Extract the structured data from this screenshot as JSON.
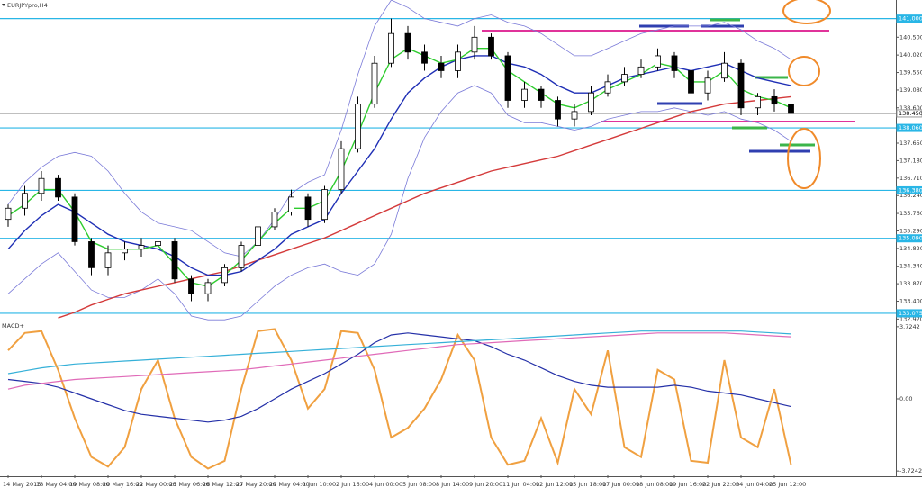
{
  "chart_data": {
    "type": "candlestick",
    "title": "EURJPYpro,H4",
    "categories": [
      "14 May 2015",
      null,
      "18 May 04:00",
      null,
      "19 May 08:00",
      null,
      "20 May 16:00",
      null,
      "22 May 00:00",
      null,
      "25 May 06:00",
      null,
      "26 May 12:00",
      null,
      "27 May 20:00",
      null,
      "29 May 04:00",
      null,
      "1 Jun 10:00",
      null,
      "2 Jun 16:00",
      null,
      "4 Jun 00:00",
      null,
      "5 Jun 08:00",
      null,
      "8 Jun 14:00",
      null,
      "9 Jun 20:00",
      null,
      "11 Jun 04:00",
      null,
      "12 Jun 12:00",
      null,
      "15 Jun 18:00",
      null,
      "17 Jun 00:00",
      null,
      "18 Jun 08:00",
      null,
      "19 Jun 16:00",
      null,
      "22 Jun 22:00",
      null,
      "24 Jun 04:00",
      null,
      "25 Jun 12:00",
      null
    ],
    "open": [
      135.6,
      135.9,
      136.3,
      136.7,
      136.2,
      135.0,
      134.3,
      134.7,
      134.8,
      134.9,
      135.0,
      134.0,
      133.6,
      133.9,
      134.3,
      134.9,
      135.4,
      135.8,
      136.2,
      135.6,
      136.4,
      137.5,
      138.7,
      139.8,
      140.6,
      140.1,
      139.8,
      139.6,
      140.1,
      140.5,
      140.0,
      138.8,
      139.1,
      138.8,
      138.3,
      138.5,
      139.0,
      139.3,
      139.5,
      139.7,
      140.0,
      139.6,
      139.0,
      139.4,
      139.8,
      138.6,
      138.9,
      138.7
    ],
    "high": [
      136.0,
      136.5,
      136.9,
      136.8,
      136.3,
      135.1,
      134.9,
      135.0,
      135.1,
      135.2,
      135.1,
      134.1,
      134.0,
      134.4,
      135.0,
      135.5,
      135.9,
      136.4,
      136.3,
      136.5,
      137.7,
      138.9,
      140.0,
      141.0,
      140.8,
      140.3,
      140.0,
      140.3,
      140.8,
      140.6,
      140.1,
      139.3,
      139.2,
      138.9,
      138.7,
      139.2,
      139.5,
      139.7,
      139.9,
      140.2,
      140.1,
      139.7,
      139.6,
      140.1,
      139.9,
      139.0,
      139.1,
      138.8
    ],
    "low": [
      135.4,
      135.7,
      136.1,
      136.1,
      134.9,
      134.1,
      134.1,
      134.5,
      134.6,
      134.7,
      133.9,
      133.4,
      133.4,
      133.8,
      134.2,
      134.8,
      135.3,
      135.7,
      135.4,
      135.5,
      136.3,
      137.4,
      138.6,
      139.7,
      139.9,
      139.6,
      139.4,
      139.4,
      139.9,
      139.9,
      138.6,
      138.6,
      138.6,
      138.1,
      138.1,
      138.4,
      138.9,
      139.2,
      139.4,
      139.6,
      139.4,
      138.8,
      138.8,
      139.3,
      138.4,
      138.4,
      138.5,
      138.3
    ],
    "close": [
      135.9,
      136.3,
      136.7,
      136.2,
      135.0,
      134.3,
      134.7,
      134.8,
      134.9,
      135.0,
      134.0,
      133.6,
      133.9,
      134.3,
      134.9,
      135.4,
      135.8,
      136.2,
      135.6,
      136.4,
      137.5,
      138.7,
      139.8,
      140.6,
      140.1,
      139.8,
      139.6,
      140.1,
      140.5,
      140.0,
      138.8,
      139.1,
      138.8,
      138.3,
      138.5,
      139.0,
      139.3,
      139.5,
      139.7,
      140.0,
      139.6,
      139.0,
      139.4,
      139.8,
      138.6,
      138.9,
      138.7,
      138.45
    ],
    "up_color": "#ffffff",
    "down_color": "#000000",
    "series": [
      {
        "color": "#d43a3a",
        "values": [
          null,
          null,
          null,
          132.95,
          133.1,
          133.3,
          133.45,
          133.6,
          133.7,
          133.8,
          133.9,
          134.0,
          134.1,
          134.2,
          134.35,
          134.5,
          134.65,
          134.8,
          134.95,
          135.1,
          135.3,
          135.5,
          135.7,
          135.9,
          136.1,
          136.3,
          136.45,
          136.6,
          136.75,
          136.9,
          137.0,
          137.1,
          137.2,
          137.3,
          137.45,
          137.6,
          137.75,
          137.9,
          138.05,
          138.2,
          138.35,
          138.5,
          138.6,
          138.7,
          138.75,
          138.8,
          138.85,
          138.9
        ]
      },
      {
        "color": "#1f2fb5",
        "values": [
          134.8,
          135.3,
          135.7,
          136.0,
          135.8,
          135.5,
          135.2,
          135.0,
          134.9,
          134.8,
          134.6,
          134.3,
          134.1,
          134.1,
          134.2,
          134.5,
          134.8,
          135.2,
          135.4,
          135.6,
          136.3,
          136.9,
          137.5,
          138.3,
          139.0,
          139.4,
          139.7,
          139.9,
          140.0,
          140.0,
          139.8,
          139.7,
          139.5,
          139.2,
          139.0,
          139.0,
          139.2,
          139.4,
          139.5,
          139.6,
          139.7,
          139.6,
          139.7,
          139.8,
          139.6,
          139.4,
          139.3,
          139.2
        ]
      },
      {
        "color": "#2ecc2e",
        "values": [
          135.7,
          136.0,
          136.4,
          136.4,
          135.8,
          135.0,
          134.8,
          134.8,
          134.8,
          134.9,
          134.4,
          133.9,
          133.8,
          134.1,
          134.5,
          135.0,
          135.5,
          135.9,
          135.9,
          136.1,
          136.9,
          137.9,
          139.0,
          139.9,
          140.2,
          140.0,
          139.8,
          139.9,
          140.2,
          140.2,
          139.6,
          139.3,
          139.0,
          138.7,
          138.6,
          138.8,
          139.1,
          139.3,
          139.5,
          139.8,
          139.7,
          139.3,
          139.3,
          139.6,
          139.1,
          138.9,
          138.8,
          138.6
        ]
      },
      {
        "color": "#7a7ad8",
        "values": [
          136.0,
          136.6,
          137.0,
          137.3,
          137.4,
          137.3,
          136.9,
          136.3,
          135.8,
          135.5,
          135.4,
          135.3,
          135.0,
          134.7,
          134.6,
          135.0,
          135.6,
          136.3,
          136.6,
          136.8,
          138.0,
          139.5,
          140.8,
          141.5,
          141.3,
          141.0,
          140.9,
          140.8,
          141.0,
          141.1,
          140.9,
          140.8,
          140.6,
          140.3,
          140.0,
          140.0,
          140.2,
          140.4,
          140.6,
          140.7,
          140.8,
          140.8,
          140.8,
          140.9,
          140.7,
          140.4,
          140.2,
          139.9
        ]
      },
      {
        "color": "#7a7ad8",
        "values": [
          133.6,
          134.0,
          134.4,
          134.7,
          134.2,
          133.7,
          133.5,
          133.5,
          133.7,
          134.0,
          133.6,
          133.0,
          132.9,
          132.9,
          133.0,
          133.4,
          133.8,
          134.1,
          134.3,
          134.4,
          134.2,
          134.1,
          134.4,
          135.2,
          136.7,
          137.8,
          138.5,
          139.0,
          139.2,
          139.0,
          138.4,
          138.2,
          138.2,
          138.1,
          138.0,
          138.1,
          138.3,
          138.4,
          138.5,
          138.5,
          138.6,
          138.5,
          138.4,
          138.5,
          138.3,
          138.2,
          138.0,
          137.7
        ]
      }
    ],
    "ylim": [
      132.88,
      141.5
    ],
    "yticks": [
      {
        "value": 132.92,
        "label": "132.920"
      },
      {
        "value": 133.4,
        "label": "133.400"
      },
      {
        "value": 133.87,
        "label": "133.870"
      },
      {
        "value": 134.34,
        "label": "134.340"
      },
      {
        "value": 134.82,
        "label": "134.820"
      },
      {
        "value": 135.29,
        "label": "135.290"
      },
      {
        "value": 135.76,
        "label": "135.760"
      },
      {
        "value": 136.24,
        "label": "136.240"
      },
      {
        "value": 136.71,
        "label": "136.710"
      },
      {
        "value": 137.18,
        "label": "137.180"
      },
      {
        "value": 137.65,
        "label": "137.650"
      },
      {
        "value": 138.6,
        "label": "138.600"
      },
      {
        "value": 139.08,
        "label": "139.080"
      },
      {
        "value": 139.55,
        "label": "139.550"
      },
      {
        "value": 140.02,
        "label": "140.020"
      },
      {
        "value": 140.5,
        "label": "140.500"
      }
    ],
    "levels": [
      {
        "value": 141.0,
        "label": "141.000"
      },
      {
        "value": 138.06,
        "label": "138.060"
      },
      {
        "value": 136.38,
        "label": "136.380"
      },
      {
        "value": 135.09,
        "label": "135.090"
      },
      {
        "value": 133.075,
        "label": "133.075"
      }
    ],
    "level_color": "#29b6e6",
    "last_price": {
      "value": 138.45,
      "label": "138.450"
    },
    "indicator": {
      "title": "MACD+",
      "ylim": [
        -3.95,
        3.95
      ],
      "yticks": [
        3.7242,
        {
          "value": 0,
          "label": "0.00"
        },
        -3.7242
      ],
      "series": [
        {
          "color": "#f0a040",
          "values": [
            2.5,
            3.4,
            3.5,
            1.5,
            -1.0,
            -3.0,
            -3.5,
            -2.5,
            0.5,
            2.0,
            -1.0,
            -3.0,
            -3.6,
            -3.2,
            0.5,
            3.5,
            3.6,
            2.0,
            -0.5,
            0.5,
            3.5,
            3.4,
            1.5,
            -2.0,
            -1.5,
            -0.5,
            1.0,
            3.3,
            2.0,
            -2.0,
            -3.4,
            -3.2,
            -1.0,
            -3.3,
            0.5,
            -0.8,
            2.5,
            -2.5,
            -3.0,
            1.5,
            1.0,
            -3.2,
            -3.3,
            2.0,
            -2.0,
            -2.5,
            0.5,
            -3.4
          ]
        },
        {
          "color": "#2430a8",
          "values": [
            1.0,
            0.9,
            0.8,
            0.6,
            0.3,
            0.0,
            -0.3,
            -0.6,
            -0.8,
            -0.9,
            -1.0,
            -1.1,
            -1.2,
            -1.1,
            -0.9,
            -0.5,
            0.0,
            0.5,
            0.9,
            1.3,
            1.8,
            2.3,
            2.9,
            3.3,
            3.4,
            3.3,
            3.2,
            3.1,
            3.0,
            2.7,
            2.3,
            2.0,
            1.6,
            1.2,
            0.9,
            0.7,
            0.6,
            0.6,
            0.6,
            0.6,
            0.7,
            0.6,
            0.4,
            0.3,
            0.2,
            0.0,
            -0.2,
            -0.4
          ]
        },
        {
          "color": "#e06ab8",
          "values": [
            0.5,
            0.7,
            0.8,
            0.9,
            1.0,
            1.05,
            1.1,
            1.15,
            1.2,
            1.25,
            1.3,
            1.35,
            1.4,
            1.45,
            1.5,
            1.6,
            1.7,
            1.8,
            1.9,
            2.0,
            2.1,
            2.2,
            2.3,
            2.4,
            2.5,
            2.6,
            2.7,
            2.8,
            2.85,
            2.9,
            2.95,
            3.0,
            3.05,
            3.1,
            3.15,
            3.2,
            3.25,
            3.3,
            3.35,
            3.4,
            3.4,
            3.4,
            3.4,
            3.4,
            3.35,
            3.3,
            3.25,
            3.2
          ]
        },
        {
          "color": "#35b0d8",
          "values": [
            1.3,
            1.45,
            1.6,
            1.7,
            1.8,
            1.85,
            1.9,
            1.95,
            2.0,
            2.05,
            2.1,
            2.15,
            2.2,
            2.25,
            2.3,
            2.35,
            2.4,
            2.45,
            2.5,
            2.55,
            2.6,
            2.65,
            2.7,
            2.75,
            2.8,
            2.85,
            2.9,
            2.95,
            3.0,
            3.05,
            3.1,
            3.15,
            3.2,
            3.25,
            3.3,
            3.35,
            3.4,
            3.45,
            3.5,
            3.5,
            3.5,
            3.5,
            3.5,
            3.5,
            3.5,
            3.45,
            3.4,
            3.35
          ]
        }
      ]
    }
  }
}
